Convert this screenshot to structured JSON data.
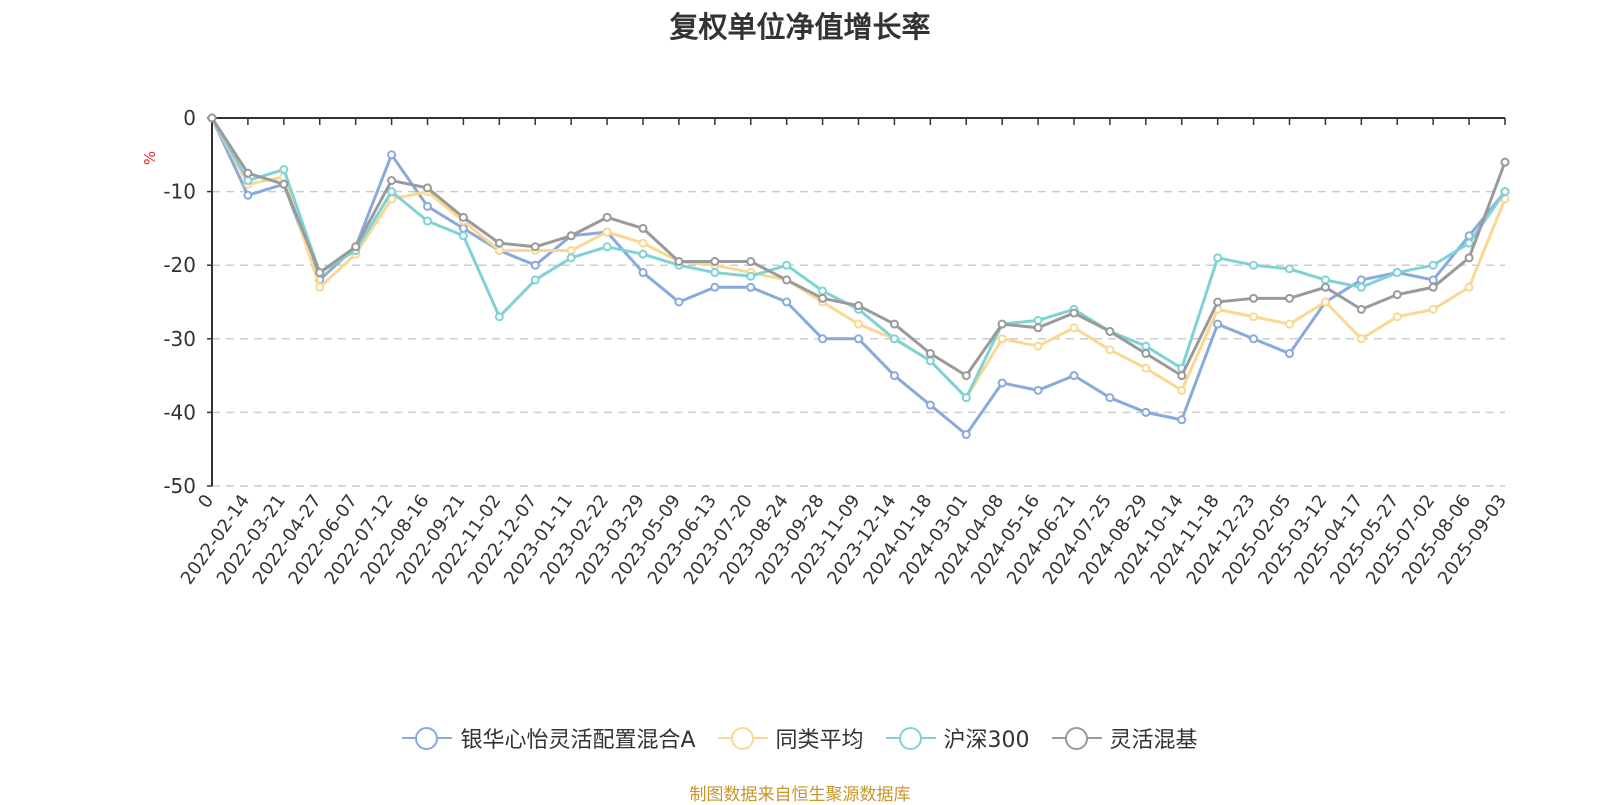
{
  "chart_data": {
    "type": "line",
    "title": "复权单位净值增长率",
    "ylabel": "%",
    "ylim": [
      -50,
      0
    ],
    "yticks": [
      0,
      -10,
      -20,
      -30,
      -40,
      -50
    ],
    "xticks": [
      "0",
      "2022-02-14",
      "2022-03-21",
      "2022-04-27",
      "2022-06-07",
      "2022-07-12",
      "2022-08-16",
      "2022-09-21",
      "2022-11-02",
      "2022-12-07",
      "2023-01-11",
      "2023-02-22",
      "2023-03-29",
      "2023-05-09",
      "2023-06-13",
      "2023-07-20",
      "2023-08-24",
      "2023-09-28",
      "2023-11-09",
      "2023-12-14",
      "2024-01-18",
      "2024-03-01",
      "2024-04-08",
      "2024-05-16",
      "2024-06-21",
      "2024-07-25",
      "2024-08-29",
      "2024-10-14",
      "2024-11-18",
      "2024-12-23",
      "2025-02-05",
      "2025-03-12",
      "2025-04-17",
      "2025-05-27",
      "2025-07-02",
      "2025-08-06",
      "2025-09-03"
    ],
    "grid": "horizontal dashed",
    "legend_position": "bottom",
    "x_index": [
      0,
      1,
      2,
      3,
      4,
      5,
      6,
      7,
      8,
      9,
      10,
      11,
      12,
      13,
      14,
      15,
      16,
      17,
      18,
      19,
      20,
      21,
      22,
      23,
      24,
      25,
      26,
      27,
      28,
      29,
      30,
      31,
      32,
      33,
      34,
      35,
      36
    ],
    "series": [
      {
        "name": "银华心怡灵活配置混合A",
        "color": "#8aa9dc",
        "values": [
          0,
          -10.5,
          -9,
          -22,
          -17.5,
          -5,
          -12,
          -15,
          -18,
          -20,
          -16,
          -15.5,
          -21,
          -25,
          -23,
          -23,
          -25,
          -30,
          -30,
          -35,
          -39,
          -43,
          -36,
          -37,
          -35,
          -38,
          -40,
          -41,
          -28,
          -30,
          -32,
          -25,
          -22,
          -21,
          -22,
          -16,
          -10
        ]
      },
      {
        "name": "同类平均",
        "color": "#fad891",
        "values": [
          0,
          -9,
          -8,
          -23,
          -18.5,
          -11,
          -10,
          -14,
          -18,
          -18,
          -18,
          -15.5,
          -17,
          -19.5,
          -20,
          -21,
          -22,
          -25,
          -28,
          -30,
          -33,
          -38,
          -30,
          -31,
          -28.5,
          -31.5,
          -34,
          -37,
          -26,
          -27,
          -28,
          -25,
          -30,
          -27,
          -26,
          -23,
          -11
        ]
      },
      {
        "name": "沪深300",
        "color": "#7fd3d6",
        "values": [
          0,
          -8.5,
          -7,
          -21,
          -18,
          -10,
          -14,
          -16,
          -27,
          -22,
          -19,
          -17.5,
          -18.5,
          -20,
          -21,
          -21.5,
          -20,
          -23.5,
          -26,
          -30,
          -33,
          -38,
          -28,
          -27.5,
          -26,
          -29,
          -31,
          -34,
          -19,
          -20,
          -20.5,
          -22,
          -23,
          -21,
          -20,
          -17,
          -10
        ]
      },
      {
        "name": "灵活混基",
        "color": "#9a9a9a",
        "values": [
          0,
          -7.5,
          -9,
          -21,
          -17.5,
          -8.5,
          -9.5,
          -13.5,
          -17,
          -17.5,
          -16,
          -13.5,
          -15,
          -19.5,
          -19.5,
          -19.5,
          -22,
          -24.5,
          -25.5,
          -28,
          -32,
          -35,
          -28,
          -28.5,
          -26.5,
          -29,
          -32,
          -35,
          -25,
          -24.5,
          -24.5,
          -23,
          -26,
          -24,
          -23,
          -19,
          -6
        ]
      }
    ]
  },
  "source_note": "制图数据来自恒生聚源数据库"
}
